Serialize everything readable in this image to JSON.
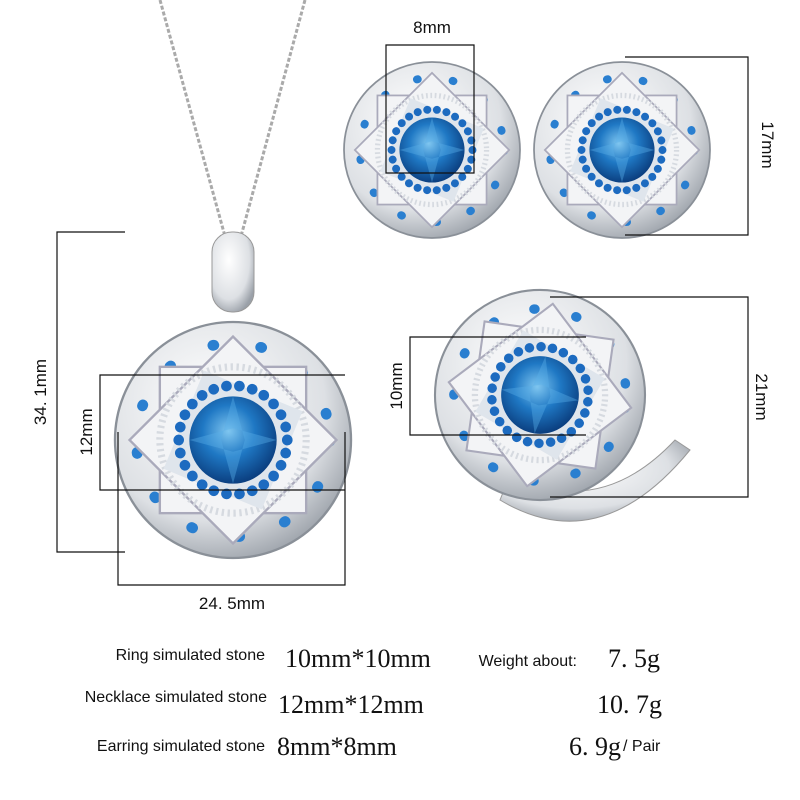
{
  "dimensions": {
    "earring_width": "8mm",
    "earring_height": "17mm",
    "pendant_height": "34. 1mm",
    "pendant_stone": "12mm",
    "ring_stone": "10mm",
    "ring_height": "21mm",
    "pendant_width": "24. 5mm"
  },
  "specs": {
    "rows": [
      {
        "label": "Ring simulated stone",
        "size": "10mm*10mm",
        "weight_label": "Weight about:",
        "weight": "7. 5g"
      },
      {
        "label": "Necklace simulated stone",
        "size": "12mm*12mm",
        "weight": "10. 7g"
      },
      {
        "label": "Earring  simulated stone",
        "size": "8mm*8mm",
        "weight": "6. 9g",
        "unit": "/ Pair"
      }
    ]
  }
}
